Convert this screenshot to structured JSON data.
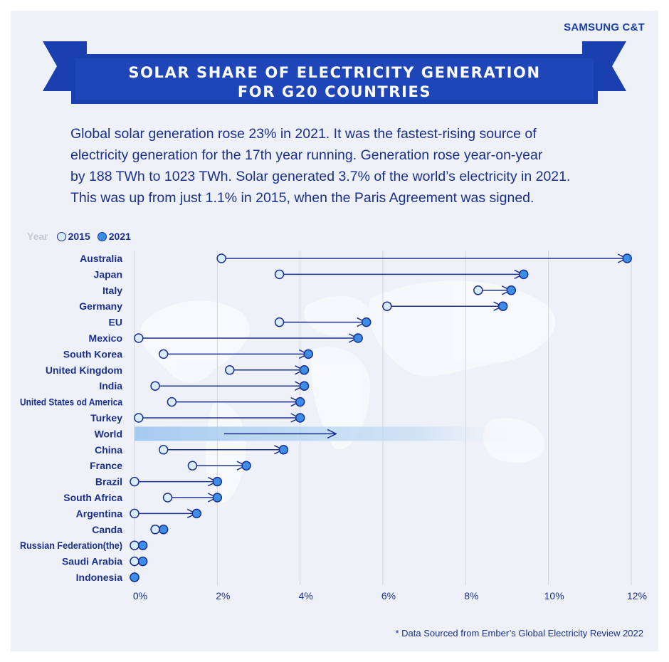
{
  "brand": "SAMSUNG C&T",
  "title_lines": [
    "SOLAR SHARE OF ELECTRICITY GENERATION",
    "FOR G20 COUNTRIES"
  ],
  "intro_lines": [
    "Global solar generation rose 23% in 2021. It was the fastest-rising source of",
    "electricity generation for the 17th year running. Generation rose year-on-year",
    "by 188 TWh to 1023 TWh. Solar generated 3.7% of the world’s electricity in 2021.",
    "This was up from just 1.1% in 2015, when the Paris Agreement was signed."
  ],
  "legend": {
    "title": "Year",
    "item_2015": "2015",
    "item_2021": "2021"
  },
  "footnote": "* Data Sourced from Ember’s Global Electricity Review 2022",
  "colors": {
    "navy": "#1b2f8f",
    "banner": "#1a3fae",
    "banner_dark": "#0f2a85",
    "dot_2015": "#d9ecfb",
    "dot_2021": "#3d8ee8",
    "world_band": "#a6cbf0",
    "grid": "#d3d6dc",
    "background": "#eef2f8"
  },
  "chart_data": {
    "type": "dumbbell",
    "x_ticks": [
      "0%",
      "2%",
      "4%",
      "6%",
      "8%",
      "10%",
      "12%"
    ],
    "xlim": [
      0,
      12
    ],
    "grid": true,
    "series_names": [
      "2015",
      "2021"
    ],
    "rows": [
      {
        "label": "Australia",
        "v2015": 2.1,
        "v2021": 11.9
      },
      {
        "label": "Japan",
        "v2015": 3.5,
        "v2021": 9.4
      },
      {
        "label": "Italy",
        "v2015": 8.3,
        "v2021": 9.1
      },
      {
        "label": "Germany",
        "v2015": 6.1,
        "v2021": 8.9
      },
      {
        "label": "EU",
        "v2015": 3.5,
        "v2021": 5.6
      },
      {
        "label": "Mexico",
        "v2015": 0.1,
        "v2021": 5.4
      },
      {
        "label": "South Korea",
        "v2015": 0.7,
        "v2021": 4.2
      },
      {
        "label": "United Kingdom",
        "v2015": 2.3,
        "v2021": 4.1
      },
      {
        "label": "India",
        "v2015": 0.5,
        "v2021": 4.1
      },
      {
        "label": "United States od America",
        "v2015": 0.9,
        "v2021": 4.0
      },
      {
        "label": "Turkey",
        "v2015": 0.1,
        "v2021": 4.0
      },
      {
        "label": "World",
        "v2015": 1.1,
        "v2021": 3.7,
        "highlight": true
      },
      {
        "label": "China",
        "v2015": 0.7,
        "v2021": 3.6
      },
      {
        "label": "France",
        "v2015": 1.4,
        "v2021": 2.7
      },
      {
        "label": "Brazil",
        "v2015": 0.0,
        "v2021": 2.0
      },
      {
        "label": "South Africa",
        "v2015": 0.8,
        "v2021": 2.0
      },
      {
        "label": "Argentina",
        "v2015": 0.0,
        "v2021": 1.5
      },
      {
        "label": "Canda",
        "v2015": 0.5,
        "v2021": 0.7
      },
      {
        "label": "Russian Federation(the)",
        "v2015": 0.0,
        "v2021": 0.2
      },
      {
        "label": "Saudi Arabia",
        "v2015": 0.0,
        "v2021": 0.2
      },
      {
        "label": "Indonesia",
        "v2015": 0.0,
        "v2021": 0.0
      }
    ]
  }
}
